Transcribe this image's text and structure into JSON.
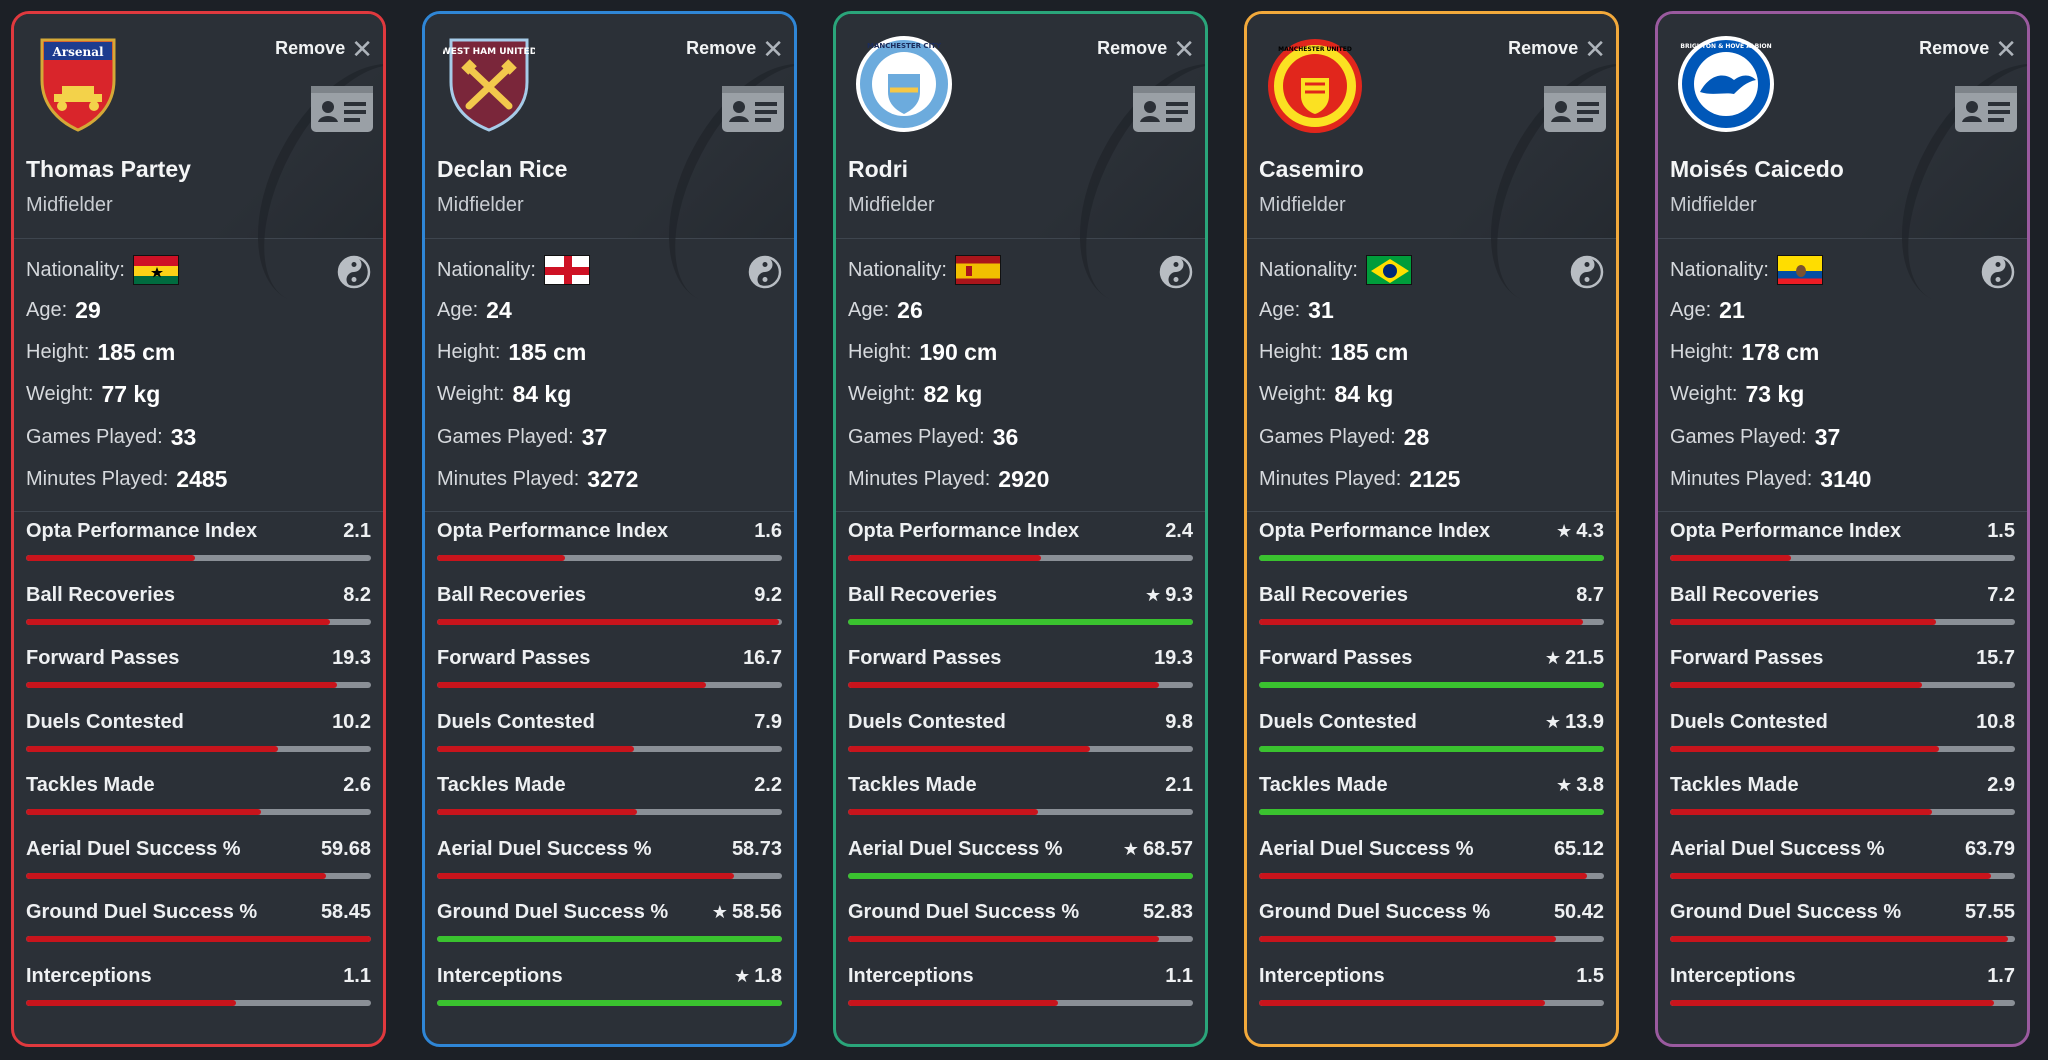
{
  "colors": {
    "fill_normal": "#c8141c",
    "fill_best": "#3ac22f",
    "track": "#8a8f96",
    "card_bg": "#2b3037"
  },
  "labels": {
    "remove": "Remove",
    "nationality": "Nationality:",
    "age": "Age:",
    "height": "Height:",
    "weight": "Weight:",
    "games": "Games Played:",
    "minutes": "Minutes Played:"
  },
  "stat_names": [
    "Opta Performance Index",
    "Ball Recoveries",
    "Forward Passes",
    "Duels Contested",
    "Tackles Made",
    "Aerial Duel Success %",
    "Ground Duel Success %",
    "Interceptions"
  ],
  "players": [
    {
      "club": "Arsenal",
      "crest_text": "Arsenal",
      "border": "#e0393e",
      "name": "Thomas Partey",
      "position": "Midfielder",
      "nationality_flag": "ghana",
      "age": "29",
      "height": "185 cm",
      "weight": "77 kg",
      "games": "33",
      "minutes": "2485",
      "stats": [
        {
          "value": "2.1",
          "best": false,
          "fill": 0.49
        },
        {
          "value": "8.2",
          "best": false,
          "fill": 0.88
        },
        {
          "value": "19.3",
          "best": false,
          "fill": 0.9
        },
        {
          "value": "10.2",
          "best": false,
          "fill": 0.73
        },
        {
          "value": "2.6",
          "best": false,
          "fill": 0.68
        },
        {
          "value": "59.68",
          "best": false,
          "fill": 0.87
        },
        {
          "value": "58.45",
          "best": false,
          "fill": 1.0
        },
        {
          "value": "1.1",
          "best": false,
          "fill": 0.61
        }
      ]
    },
    {
      "club": "West Ham United",
      "crest_text": "WEST HAM UNITED",
      "border": "#2f86d6",
      "name": "Declan Rice",
      "position": "Midfielder",
      "nationality_flag": "england",
      "age": "24",
      "height": "185 cm",
      "weight": "84 kg",
      "games": "37",
      "minutes": "3272",
      "stats": [
        {
          "value": "1.6",
          "best": false,
          "fill": 0.37
        },
        {
          "value": "9.2",
          "best": false,
          "fill": 0.99
        },
        {
          "value": "16.7",
          "best": false,
          "fill": 0.78
        },
        {
          "value": "7.9",
          "best": false,
          "fill": 0.57
        },
        {
          "value": "2.2",
          "best": false,
          "fill": 0.58
        },
        {
          "value": "58.73",
          "best": false,
          "fill": 0.86
        },
        {
          "value": "58.56",
          "best": true,
          "fill": 1.0
        },
        {
          "value": "1.8",
          "best": true,
          "fill": 1.0
        }
      ]
    },
    {
      "club": "Manchester City",
      "crest_text": "MANCHESTER CITY",
      "border": "#2aa57a",
      "name": "Rodri",
      "position": "Midfielder",
      "nationality_flag": "spain",
      "age": "26",
      "height": "190 cm",
      "weight": "82 kg",
      "games": "36",
      "minutes": "2920",
      "stats": [
        {
          "value": "2.4",
          "best": false,
          "fill": 0.56
        },
        {
          "value": "9.3",
          "best": true,
          "fill": 1.0
        },
        {
          "value": "19.3",
          "best": false,
          "fill": 0.9
        },
        {
          "value": "9.8",
          "best": false,
          "fill": 0.7
        },
        {
          "value": "2.1",
          "best": false,
          "fill": 0.55
        },
        {
          "value": "68.57",
          "best": true,
          "fill": 1.0
        },
        {
          "value": "52.83",
          "best": false,
          "fill": 0.9
        },
        {
          "value": "1.1",
          "best": false,
          "fill": 0.61
        }
      ]
    },
    {
      "club": "Manchester United",
      "crest_text": "MANCHESTER UNITED",
      "border": "#f2a93b",
      "name": "Casemiro",
      "position": "Midfielder",
      "nationality_flag": "brazil",
      "age": "31",
      "height": "185 cm",
      "weight": "84 kg",
      "games": "28",
      "minutes": "2125",
      "stats": [
        {
          "value": "4.3",
          "best": true,
          "fill": 1.0
        },
        {
          "value": "8.7",
          "best": false,
          "fill": 0.94
        },
        {
          "value": "21.5",
          "best": true,
          "fill": 1.0
        },
        {
          "value": "13.9",
          "best": true,
          "fill": 1.0
        },
        {
          "value": "3.8",
          "best": true,
          "fill": 1.0
        },
        {
          "value": "65.12",
          "best": false,
          "fill": 0.95
        },
        {
          "value": "50.42",
          "best": false,
          "fill": 0.86
        },
        {
          "value": "1.5",
          "best": false,
          "fill": 0.83
        }
      ]
    },
    {
      "club": "Brighton & Hove Albion",
      "crest_text": "BRIGHTON & HOVE ALBION",
      "border": "#9a5a9f",
      "name": "Moisés Caicedo",
      "position": "Midfielder",
      "nationality_flag": "ecuador",
      "age": "21",
      "height": "178 cm",
      "weight": "73 kg",
      "games": "37",
      "minutes": "3140",
      "stats": [
        {
          "value": "1.5",
          "best": false,
          "fill": 0.35
        },
        {
          "value": "7.2",
          "best": false,
          "fill": 0.77
        },
        {
          "value": "15.7",
          "best": false,
          "fill": 0.73
        },
        {
          "value": "10.8",
          "best": false,
          "fill": 0.78
        },
        {
          "value": "2.9",
          "best": false,
          "fill": 0.76
        },
        {
          "value": "63.79",
          "best": false,
          "fill": 0.93
        },
        {
          "value": "57.55",
          "best": false,
          "fill": 0.98
        },
        {
          "value": "1.7",
          "best": false,
          "fill": 0.94
        }
      ]
    }
  ]
}
